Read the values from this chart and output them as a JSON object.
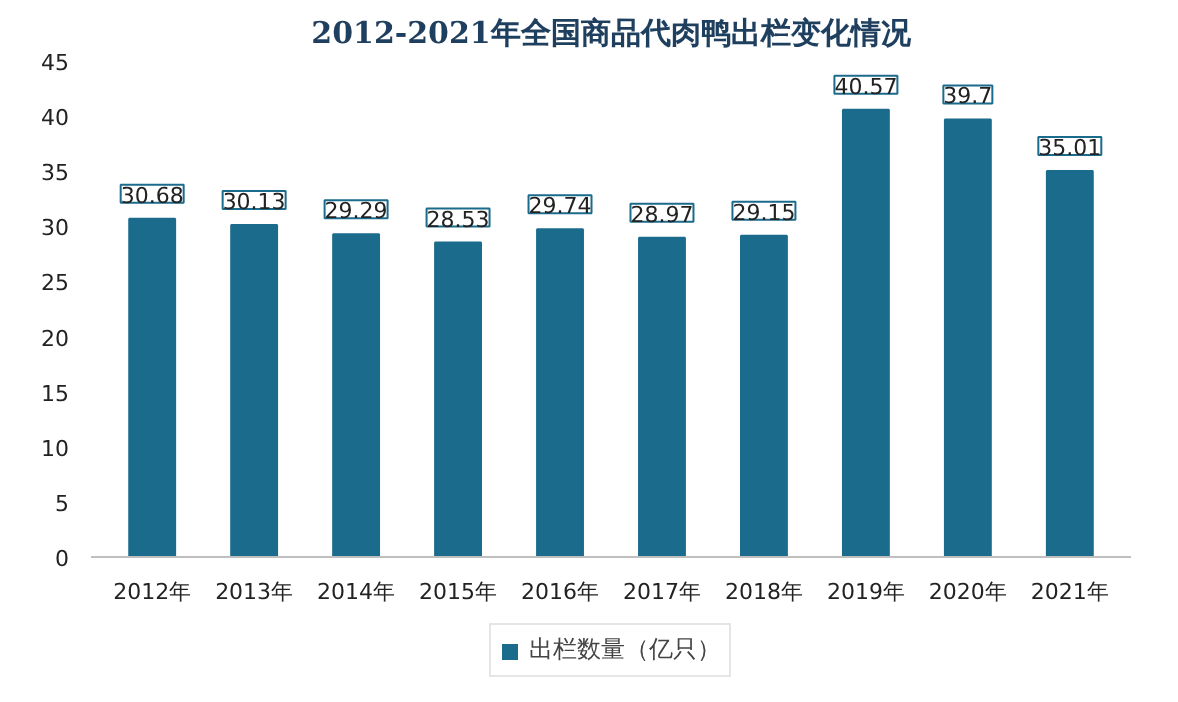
{
  "chart_data": {
    "type": "bar",
    "title": "2012-2021年全国商品代肉鸭出栏变化情况",
    "categories": [
      "2012年",
      "2013年",
      "2014年",
      "2015年",
      "2016年",
      "2017年",
      "2018年",
      "2019年",
      "2020年",
      "2021年"
    ],
    "series": [
      {
        "name": "出栏数量（亿只）",
        "color": "#1b6b8c",
        "values": [
          30.68,
          30.13,
          29.29,
          28.53,
          29.74,
          28.97,
          29.15,
          40.57,
          39.7,
          35.01
        ]
      }
    ],
    "ylim": [
      0,
      45
    ],
    "yticks": [
      0,
      5,
      10,
      15,
      20,
      25,
      30,
      35,
      40,
      45
    ],
    "grid": false,
    "legend": "bottom",
    "data_labels": true
  }
}
